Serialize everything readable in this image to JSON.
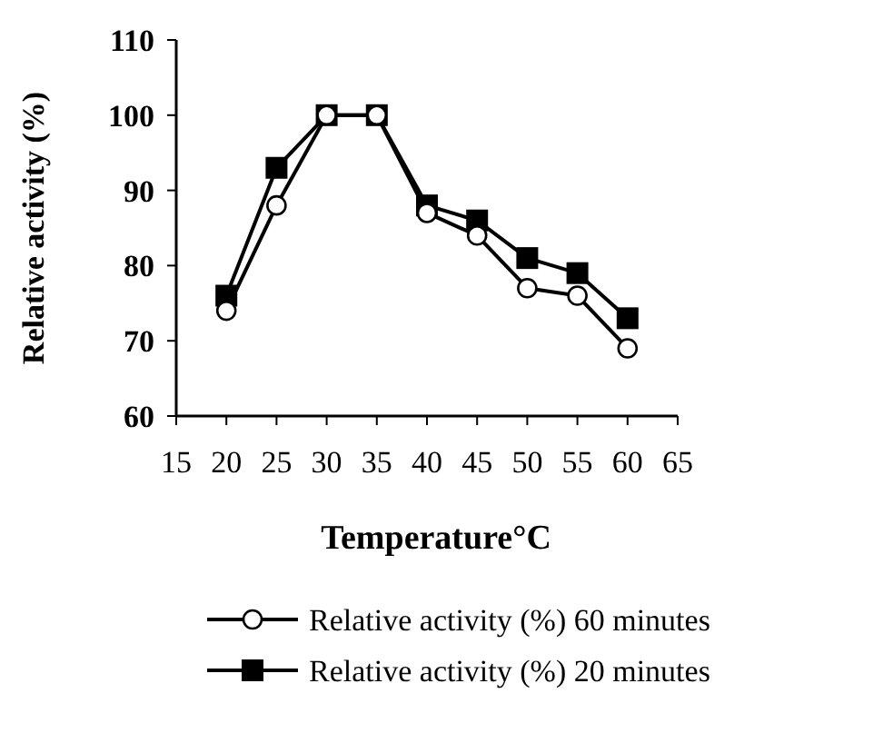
{
  "chart_data": {
    "type": "line",
    "xlabel": "Temperature°C",
    "ylabel": "Relative activity (%)",
    "x": [
      20,
      25,
      30,
      35,
      40,
      45,
      50,
      55,
      60
    ],
    "series": [
      {
        "name": "Relative activity (%) 60 minutes",
        "color": "#000000",
        "marker": "circle",
        "values": [
          74,
          88,
          100,
          100,
          87,
          84,
          77,
          76,
          69
        ]
      },
      {
        "name": "Relative activity (%) 20 minutes",
        "color": "#000000",
        "marker": "square",
        "values": [
          76,
          93,
          100,
          100,
          88,
          86,
          81,
          79,
          73
        ]
      }
    ],
    "xlim": [
      15,
      65
    ],
    "xticks": [
      15,
      20,
      25,
      30,
      35,
      40,
      45,
      50,
      55,
      60,
      65
    ],
    "ylim": [
      60,
      110
    ],
    "yticks": [
      60,
      70,
      80,
      90,
      100,
      110
    ],
    "legend": "bottom",
    "line_style": "solid"
  }
}
